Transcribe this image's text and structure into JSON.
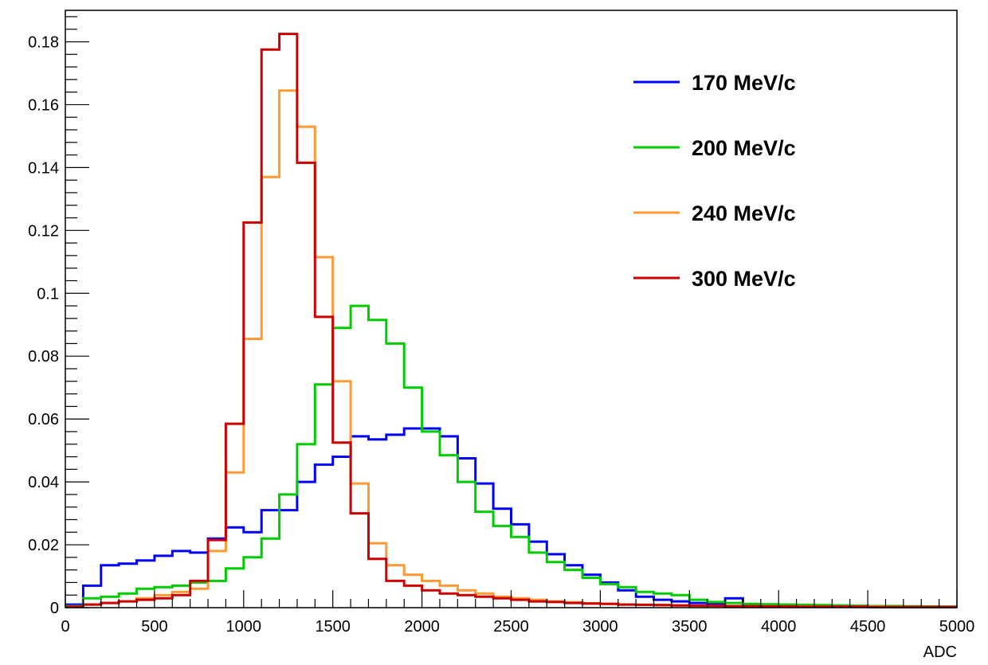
{
  "chart_data": {
    "type": "histogram",
    "title": "",
    "xlabel": "ADC",
    "ylabel": "",
    "xlim": [
      0,
      5000
    ],
    "ylim": [
      0,
      0.19
    ],
    "bin_width": 100,
    "grid": false,
    "legend_position": "top-right",
    "x_ticks": [
      0,
      500,
      1000,
      1500,
      2000,
      2500,
      3000,
      3500,
      4000,
      4500,
      5000
    ],
    "x_tick_labels": [
      "0",
      "500",
      "1000",
      "1500",
      "2000",
      "2500",
      "3000",
      "3500",
      "4000",
      "4500",
      "5000"
    ],
    "y_ticks": [
      0,
      0.02,
      0.04,
      0.06,
      0.08,
      0.1,
      0.12,
      0.14,
      0.16,
      0.18
    ],
    "y_tick_labels": [
      "0",
      "0.02",
      "0.04",
      "0.06",
      "0.08",
      "0.1",
      "0.12",
      "0.14",
      "0.16",
      "0.18"
    ],
    "series": [
      {
        "name": "170 MeV/c",
        "color": "#0000ff",
        "values": [
          0.001,
          0.007,
          0.0135,
          0.014,
          0.015,
          0.0165,
          0.018,
          0.0175,
          0.022,
          0.0255,
          0.024,
          0.031,
          0.031,
          0.04,
          0.0455,
          0.048,
          0.0545,
          0.0535,
          0.055,
          0.057,
          0.057,
          0.0545,
          0.0475,
          0.0395,
          0.0315,
          0.0265,
          0.021,
          0.017,
          0.0135,
          0.0105,
          0.008,
          0.0055,
          0.0035,
          0.0025,
          0.002,
          0.0015,
          0.0012,
          0.003,
          0.0011,
          0.001,
          0.0009,
          0.0008,
          0.0007,
          0.0006,
          0.0005,
          0.0005,
          0.0004,
          0.0004,
          0.0003,
          0.0003
        ]
      },
      {
        "name": "200 MeV/c",
        "color": "#00cc00",
        "values": [
          0.0005,
          0.003,
          0.0035,
          0.0045,
          0.006,
          0.0065,
          0.007,
          0.008,
          0.0085,
          0.0125,
          0.016,
          0.022,
          0.036,
          0.052,
          0.071,
          0.089,
          0.096,
          0.0915,
          0.084,
          0.07,
          0.056,
          0.0485,
          0.04,
          0.0305,
          0.026,
          0.0225,
          0.0175,
          0.0145,
          0.012,
          0.0095,
          0.0075,
          0.0065,
          0.005,
          0.0045,
          0.004,
          0.0025,
          0.0018,
          0.0015,
          0.0012,
          0.0011,
          0.001,
          0.0009,
          0.0008,
          0.0007,
          0.0006,
          0.0005,
          0.0005,
          0.0004,
          0.0004,
          0.0003
        ]
      },
      {
        "name": "240 MeV/c",
        "color": "#ff9933",
        "values": [
          0.0003,
          0.001,
          0.0015,
          0.002,
          0.003,
          0.004,
          0.005,
          0.006,
          0.018,
          0.043,
          0.0855,
          0.137,
          0.1645,
          0.153,
          0.1115,
          0.072,
          0.0395,
          0.0205,
          0.0135,
          0.0105,
          0.0085,
          0.007,
          0.0055,
          0.0045,
          0.0035,
          0.003,
          0.0025,
          0.002,
          0.0017,
          0.0014,
          0.0012,
          0.001,
          0.0009,
          0.0008,
          0.0007,
          0.0006,
          0.0006,
          0.0005,
          0.0005,
          0.0004,
          0.0004,
          0.0004,
          0.0003,
          0.0003,
          0.0003,
          0.0003,
          0.0002,
          0.0002,
          0.0002,
          0.0002
        ]
      },
      {
        "name": "300 MeV/c",
        "color": "#cc0000",
        "values": [
          0.0003,
          0.001,
          0.0015,
          0.002,
          0.0025,
          0.003,
          0.004,
          0.0085,
          0.0215,
          0.0585,
          0.1225,
          0.1775,
          0.1825,
          0.1415,
          0.0925,
          0.0525,
          0.03,
          0.0155,
          0.0085,
          0.007,
          0.0055,
          0.0045,
          0.004,
          0.0035,
          0.003,
          0.0025,
          0.002,
          0.0018,
          0.0015,
          0.0013,
          0.0012,
          0.001,
          0.0009,
          0.0008,
          0.0007,
          0.0006,
          0.0006,
          0.0005,
          0.0005,
          0.0004,
          0.0004,
          0.0003,
          0.0003,
          0.0003,
          0.0003,
          0.0002,
          0.0002,
          0.0002,
          0.0002,
          0.0002
        ]
      }
    ]
  }
}
